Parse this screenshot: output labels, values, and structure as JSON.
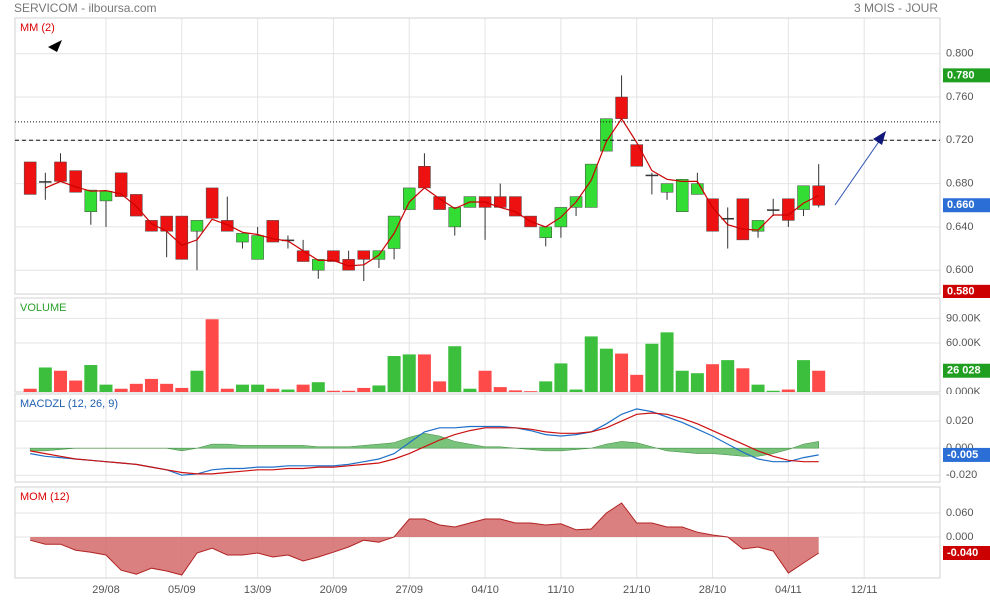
{
  "header": {
    "title": "SERVICOM - ilboursa.com",
    "period": "3 MOIS - JOUR"
  },
  "chart_data": [
    {
      "type": "candlestick",
      "title": "MM (2)",
      "title_color": "#dd0000",
      "up_color": "#33dd33",
      "down_color": "#ee1111",
      "line_color": "#cc0000",
      "open": [
        0.7,
        0.682,
        0.7,
        0.692,
        0.654,
        0.664,
        0.69,
        0.67,
        0.646,
        0.65,
        0.65,
        0.636,
        0.676,
        0.646,
        0.626,
        0.61,
        0.646,
        0.628,
        0.618,
        0.6,
        0.618,
        0.61,
        0.618,
        0.61,
        0.62,
        0.656,
        0.696,
        0.668,
        0.64,
        0.658,
        0.668,
        0.668,
        0.668,
        0.65,
        0.63,
        0.64,
        0.658,
        0.658,
        0.71,
        0.76,
        0.716,
        0.688,
        0.672,
        0.654,
        0.67,
        0.666,
        0.648,
        0.666,
        0.636,
        0.656,
        0.666,
        0.656,
        0.678
      ],
      "high": [
        0.7,
        0.69,
        0.708,
        0.692,
        0.674,
        0.673,
        0.69,
        0.67,
        0.646,
        0.65,
        0.65,
        0.646,
        0.676,
        0.668,
        0.634,
        0.64,
        0.646,
        0.632,
        0.628,
        0.61,
        0.618,
        0.618,
        0.618,
        0.618,
        0.65,
        0.676,
        0.708,
        0.668,
        0.658,
        0.668,
        0.668,
        0.68,
        0.668,
        0.65,
        0.64,
        0.658,
        0.668,
        0.698,
        0.74,
        0.78,
        0.716,
        0.69,
        0.68,
        0.684,
        0.69,
        0.666,
        0.658,
        0.666,
        0.646,
        0.666,
        0.666,
        0.678,
        0.698
      ],
      "low": [
        0.67,
        0.665,
        0.682,
        0.672,
        0.642,
        0.64,
        0.668,
        0.65,
        0.636,
        0.612,
        0.61,
        0.6,
        0.648,
        0.636,
        0.62,
        0.61,
        0.626,
        0.62,
        0.608,
        0.592,
        0.608,
        0.6,
        0.59,
        0.602,
        0.61,
        0.656,
        0.676,
        0.656,
        0.632,
        0.658,
        0.628,
        0.658,
        0.65,
        0.64,
        0.622,
        0.63,
        0.65,
        0.658,
        0.71,
        0.74,
        0.696,
        0.67,
        0.665,
        0.654,
        0.67,
        0.636,
        0.62,
        0.628,
        0.63,
        0.65,
        0.64,
        0.65,
        0.658
      ],
      "close": [
        0.67,
        0.682,
        0.682,
        0.672,
        0.674,
        0.673,
        0.668,
        0.65,
        0.636,
        0.636,
        0.61,
        0.646,
        0.648,
        0.636,
        0.634,
        0.632,
        0.626,
        0.628,
        0.608,
        0.61,
        0.608,
        0.6,
        0.61,
        0.618,
        0.65,
        0.676,
        0.676,
        0.656,
        0.658,
        0.668,
        0.658,
        0.658,
        0.65,
        0.64,
        0.64,
        0.658,
        0.668,
        0.698,
        0.74,
        0.74,
        0.696,
        0.688,
        0.68,
        0.684,
        0.68,
        0.636,
        0.648,
        0.628,
        0.646,
        0.656,
        0.646,
        0.678,
        0.66
      ],
      "ma": [
        null,
        0.676,
        0.682,
        0.677,
        0.673,
        0.6735,
        0.6705,
        0.659,
        0.643,
        0.636,
        0.623,
        0.628,
        0.647,
        0.642,
        0.635,
        0.633,
        0.629,
        0.627,
        0.618,
        0.609,
        0.609,
        0.604,
        0.605,
        0.614,
        0.634,
        0.663,
        0.676,
        0.666,
        0.657,
        0.663,
        0.663,
        0.658,
        0.654,
        0.645,
        0.64,
        0.649,
        0.663,
        0.683,
        0.719,
        0.74,
        0.718,
        0.692,
        0.684,
        0.682,
        0.682,
        0.658,
        0.642,
        0.638,
        0.637,
        0.651,
        0.651,
        0.662,
        0.669
      ],
      "ylim": [
        0.578,
        0.833
      ],
      "yticks": [
        {
          "value": 0.6,
          "label": "0.600"
        },
        {
          "value": 0.64,
          "label": "0.640"
        },
        {
          "value": 0.68,
          "label": "0.680"
        },
        {
          "value": 0.72,
          "label": "0.720"
        },
        {
          "value": 0.76,
          "label": "0.760"
        },
        {
          "value": 0.8,
          "label": "0.800"
        }
      ],
      "hlines": [
        {
          "value": 0.72,
          "style": "dashed"
        },
        {
          "value": 0.737,
          "style": "dotted"
        }
      ],
      "markers": [
        {
          "value": 0.78,
          "label": "0.780",
          "color": "#1f9e1f"
        },
        {
          "value": 0.66,
          "label": "0.660",
          "color": "#2b6fd6"
        },
        {
          "value": 0.58,
          "label": "0.580",
          "color": "#cc0000"
        }
      ]
    },
    {
      "type": "bar",
      "title": "VOLUME",
      "title_color": "#2aa02a",
      "up_color": "#3cbf3c",
      "down_color": "#ff4a4a",
      "values": [
        4000,
        30000,
        26000,
        14000,
        33000,
        9000,
        4000,
        10000,
        16000,
        10000,
        5000,
        26000,
        89000,
        4000,
        9000,
        9000,
        4000,
        3000,
        9000,
        12000,
        1500,
        1500,
        5000,
        8000,
        44000,
        46000,
        46000,
        13000,
        56000,
        4000,
        26000,
        6000,
        2000,
        1000,
        13000,
        35000,
        3000,
        68000,
        53000,
        47000,
        21000,
        59000,
        73000,
        26000,
        23000,
        34000,
        39000,
        29000,
        9000,
        1500,
        3000,
        39000,
        26028
      ],
      "ylim": [
        0,
        115000
      ],
      "yticks": [
        {
          "value": 0,
          "label": "0.000K"
        },
        {
          "value": 60000,
          "label": "60.00K"
        },
        {
          "value": 90000,
          "label": "90.00K"
        }
      ],
      "markers": [
        {
          "value": 26028,
          "label": "26 028",
          "color": "#1f9e1f"
        }
      ]
    },
    {
      "type": "line",
      "title": "MACDZL (12, 26, 9)",
      "title_color": "#1f5fb0",
      "series": [
        {
          "color": "#1f6fc8",
          "values": [
            -0.004,
            -0.006,
            -0.007,
            -0.008,
            -0.009,
            -0.01,
            -0.011,
            -0.012,
            -0.014,
            -0.016,
            -0.02,
            -0.019,
            -0.016,
            -0.015,
            -0.015,
            -0.014,
            -0.014,
            -0.013,
            -0.013,
            -0.013,
            -0.013,
            -0.012,
            -0.01,
            -0.008,
            -0.004,
            0.004,
            0.012,
            0.015,
            0.015,
            0.016,
            0.016,
            0.016,
            0.015,
            0.013,
            0.01,
            0.009,
            0.01,
            0.012,
            0.018,
            0.025,
            0.029,
            0.027,
            0.023,
            0.019,
            0.014,
            0.009,
            0.003,
            -0.003,
            -0.008,
            -0.01,
            -0.01,
            -0.007,
            -0.005
          ]
        },
        {
          "color": "#cc1111",
          "values": [
            -0.002,
            -0.004,
            -0.006,
            -0.008,
            -0.009,
            -0.01,
            -0.011,
            -0.012,
            -0.014,
            -0.016,
            -0.018,
            -0.019,
            -0.019,
            -0.018,
            -0.017,
            -0.016,
            -0.016,
            -0.015,
            -0.015,
            -0.014,
            -0.014,
            -0.013,
            -0.012,
            -0.011,
            -0.008,
            -0.004,
            0.001,
            0.006,
            0.01,
            0.013,
            0.015,
            0.015,
            0.015,
            0.014,
            0.012,
            0.011,
            0.011,
            0.012,
            0.015,
            0.02,
            0.025,
            0.026,
            0.025,
            0.022,
            0.018,
            0.013,
            0.008,
            0.003,
            -0.002,
            -0.006,
            -0.009,
            -0.01,
            -0.01
          ]
        }
      ],
      "histogram": {
        "color": "#4caf50",
        "values": [
          -0.002,
          -0.002,
          -0.001,
          0,
          0,
          0,
          0,
          0,
          0,
          0,
          -0.002,
          0,
          0.003,
          0.003,
          0.002,
          0.002,
          0.002,
          0.002,
          0.002,
          0.001,
          0.001,
          0.001,
          0.002,
          0.003,
          0.004,
          0.008,
          0.011,
          0.009,
          0.005,
          0.003,
          0.001,
          0.001,
          0,
          -0.001,
          -0.002,
          -0.002,
          -0.001,
          0,
          0.003,
          0.005,
          0.004,
          0.001,
          -0.002,
          -0.003,
          -0.004,
          -0.004,
          -0.005,
          -0.006,
          -0.006,
          -0.004,
          -0.001,
          0.003,
          0.005
        ]
      },
      "ylim": [
        -0.025,
        0.04
      ],
      "yticks": [
        {
          "value": -0.02,
          "label": "-0.020"
        },
        {
          "value": 0,
          "label": "0.000"
        },
        {
          "value": 0.02,
          "label": "0.020"
        }
      ],
      "markers": [
        {
          "value": -0.005,
          "label": "-0.005",
          "color": "#2b6fd6"
        }
      ]
    },
    {
      "type": "area",
      "title": "MOM (12)",
      "title_color": "#dd0000",
      "color": "#d46a6a",
      "line_color": "#b22222",
      "values": [
        -0.008,
        -0.018,
        -0.018,
        -0.033,
        -0.038,
        -0.045,
        -0.083,
        -0.093,
        -0.078,
        -0.085,
        -0.095,
        -0.04,
        -0.028,
        -0.045,
        -0.045,
        -0.04,
        -0.05,
        -0.045,
        -0.06,
        -0.05,
        -0.038,
        -0.025,
        -0.008,
        -0.013,
        0.0,
        0.045,
        0.045,
        0.03,
        0.025,
        0.035,
        0.045,
        0.045,
        0.035,
        0.035,
        0.03,
        0.033,
        0.018,
        0.02,
        0.06,
        0.085,
        0.035,
        0.035,
        0.025,
        0.025,
        0.012,
        0.005,
        0.0,
        -0.03,
        -0.025,
        -0.035,
        -0.09,
        -0.065,
        -0.04
      ],
      "ylim": [
        -0.1025,
        0.125
      ],
      "yticks": [
        {
          "value": 0,
          "label": "0.000"
        },
        {
          "value": 0.06,
          "label": "0.060"
        }
      ],
      "markers": [
        {
          "value": -0.04,
          "label": "-0.040",
          "color": "#cc0000"
        }
      ],
      "xlim": [
        -1,
        60
      ],
      "xticks": [
        {
          "value": 5,
          "label": "29/08"
        },
        {
          "value": 10,
          "label": "05/09"
        },
        {
          "value": 15,
          "label": "13/09"
        },
        {
          "value": 20,
          "label": "20/09"
        },
        {
          "value": 25,
          "label": "27/09"
        },
        {
          "value": 30,
          "label": "04/10"
        },
        {
          "value": 35,
          "label": "11/10"
        },
        {
          "value": 40,
          "label": "21/10"
        },
        {
          "value": 45,
          "label": "28/10"
        },
        {
          "value": 50,
          "label": "04/11"
        },
        {
          "value": 55,
          "label": "12/11"
        }
      ]
    }
  ]
}
